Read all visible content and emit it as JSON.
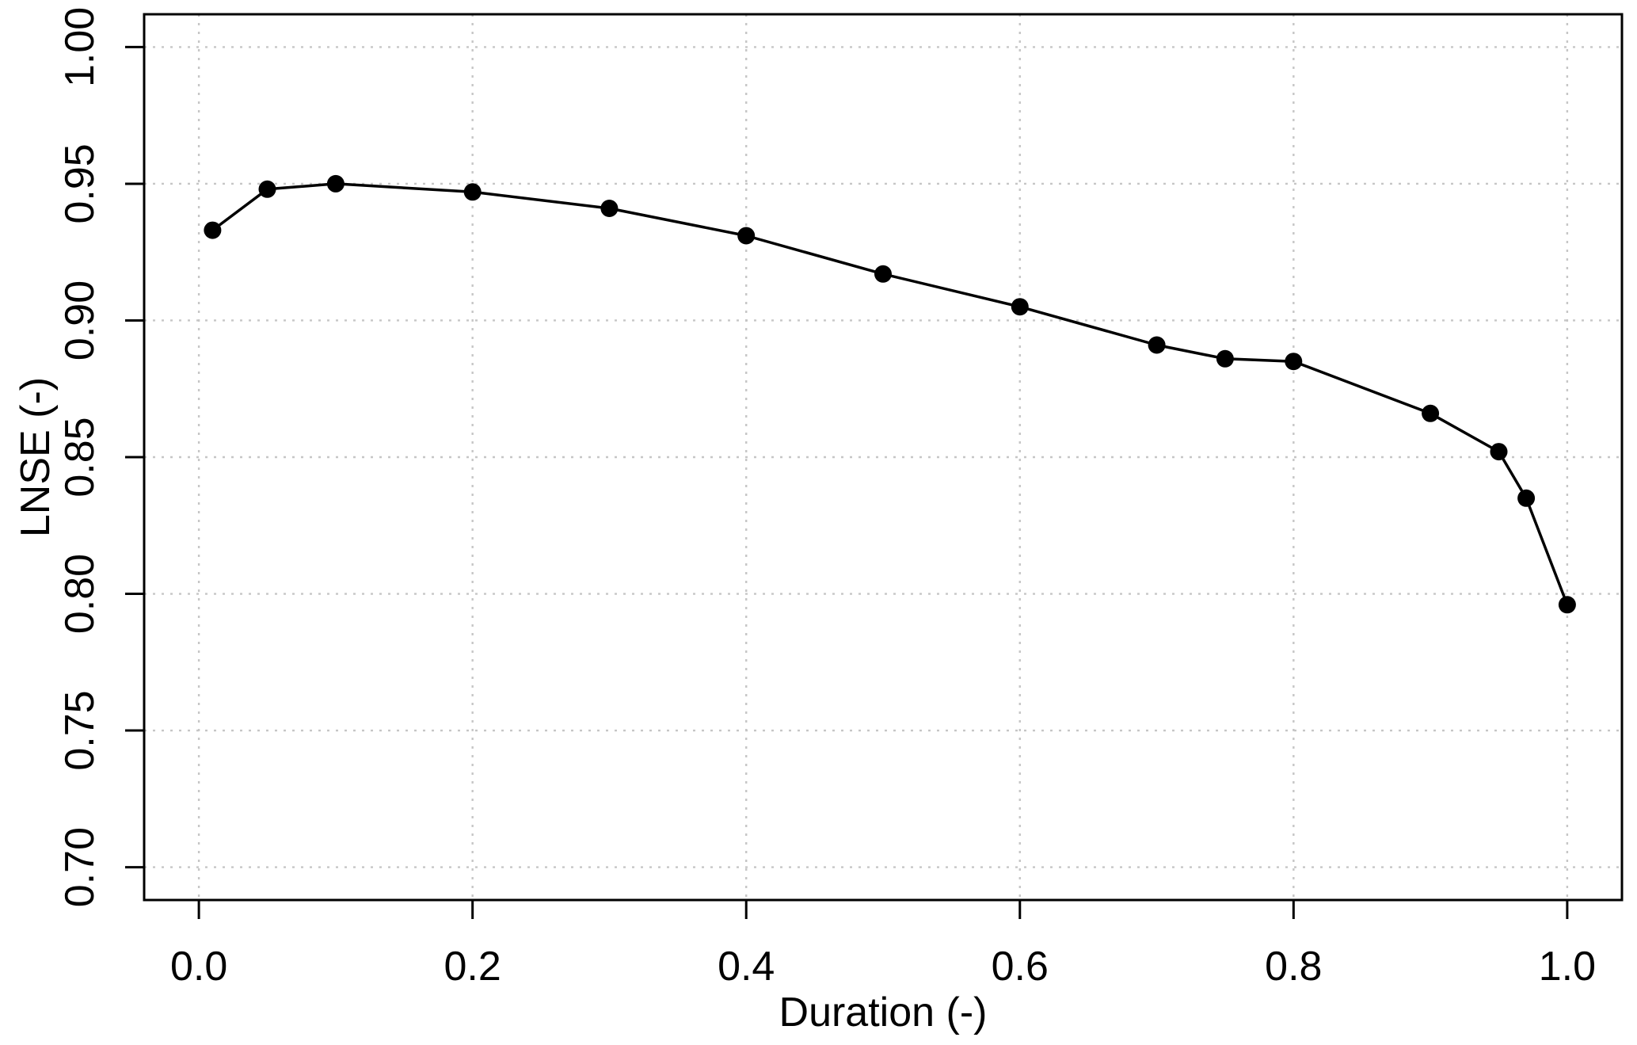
{
  "chart_data": {
    "type": "line",
    "title": "",
    "xlabel": "Duration (-)",
    "ylabel": "LNSE (-)",
    "x": [
      0.01,
      0.05,
      0.1,
      0.2,
      0.3,
      0.4,
      0.5,
      0.6,
      0.7,
      0.75,
      0.8,
      0.9,
      0.95,
      0.97,
      1.0
    ],
    "y": [
      0.933,
      0.948,
      0.95,
      0.947,
      0.941,
      0.931,
      0.917,
      0.905,
      0.891,
      0.886,
      0.885,
      0.866,
      0.852,
      0.835,
      0.796
    ],
    "x_ticks": [
      0.0,
      0.2,
      0.4,
      0.6,
      0.8,
      1.0
    ],
    "x_tick_labels": [
      "0.0",
      "0.2",
      "0.4",
      "0.6",
      "0.8",
      "1.0"
    ],
    "y_ticks": [
      0.7,
      0.75,
      0.8,
      0.85,
      0.9,
      0.95,
      1.0
    ],
    "y_tick_labels": [
      "0.70",
      "0.75",
      "0.80",
      "0.85",
      "0.90",
      "0.95",
      "1.00"
    ],
    "xlim": [
      -0.04,
      1.04
    ],
    "ylim": [
      0.688,
      1.012
    ],
    "grid": true,
    "grid_style": "dotted",
    "legend": false,
    "marker": "filled-circle",
    "colors": {
      "line": "#000000",
      "marker": "#000000",
      "grid": "#C6C6C6",
      "axis": "#000000",
      "text": "#000000",
      "background": "#FFFFFF"
    }
  }
}
